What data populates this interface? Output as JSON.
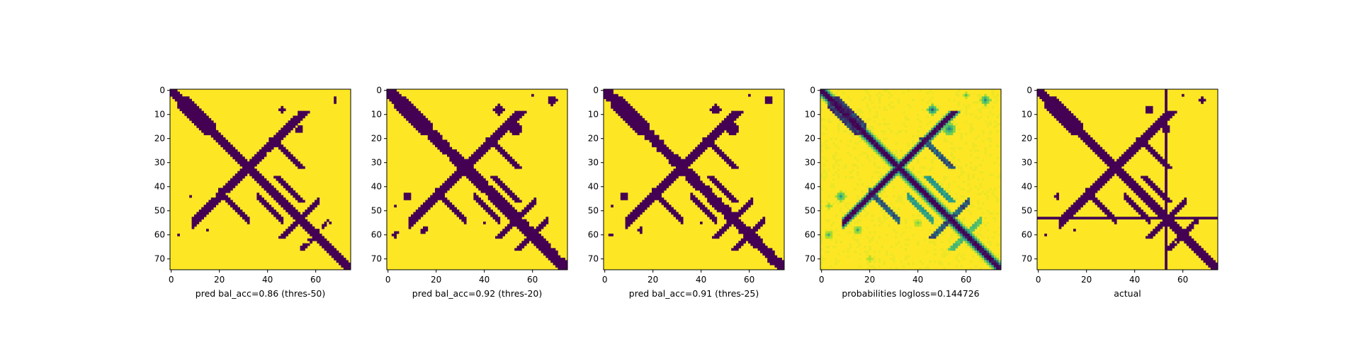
{
  "chart_data": [
    {
      "type": "heatmap",
      "xlabel": "pred bal_acc=0.86 (thres-50)",
      "xticks": [
        0,
        20,
        40,
        60
      ],
      "yticks": [
        0,
        10,
        20,
        30,
        40,
        50,
        60,
        70
      ],
      "xlim": [
        0,
        75
      ],
      "ylim": [
        75,
        0
      ],
      "colormap": "viridis",
      "values_binary": true,
      "grid": false
    },
    {
      "type": "heatmap",
      "xlabel": "pred bal_acc=0.92 (thres-20)",
      "xticks": [
        0,
        20,
        40,
        60
      ],
      "yticks": [
        0,
        10,
        20,
        30,
        40,
        50,
        60,
        70
      ],
      "xlim": [
        0,
        75
      ],
      "ylim": [
        75,
        0
      ],
      "colormap": "viridis",
      "values_binary": true,
      "grid": false
    },
    {
      "type": "heatmap",
      "xlabel": "pred bal_acc=0.91 (thres-25)",
      "xticks": [
        0,
        20,
        40,
        60
      ],
      "yticks": [
        0,
        10,
        20,
        30,
        40,
        50,
        60,
        70
      ],
      "xlim": [
        0,
        75
      ],
      "ylim": [
        75,
        0
      ],
      "colormap": "viridis",
      "values_binary": true,
      "grid": false
    },
    {
      "type": "heatmap",
      "xlabel": "probabilities logloss=0.144726",
      "xticks": [
        0,
        20,
        40,
        60
      ],
      "yticks": [
        0,
        10,
        20,
        30,
        40,
        50,
        60,
        70
      ],
      "xlim": [
        0,
        75
      ],
      "ylim": [
        75,
        0
      ],
      "colormap": "viridis",
      "values_binary": false,
      "grid": false
    },
    {
      "type": "heatmap",
      "xlabel": "actual",
      "xticks": [
        0,
        20,
        40,
        60
      ],
      "yticks": [
        0,
        10,
        20,
        30,
        40,
        50,
        60,
        70
      ],
      "xlim": [
        0,
        75
      ],
      "ylim": [
        75,
        0
      ],
      "colormap": "viridis",
      "values_binary": true,
      "grid": false,
      "cross_line_index": 53
    }
  ],
  "colors": {
    "low": "#440154",
    "high": "#fde725",
    "mid1": "#21918c",
    "mid2": "#5ec962",
    "mid3": "#b5de2b"
  }
}
